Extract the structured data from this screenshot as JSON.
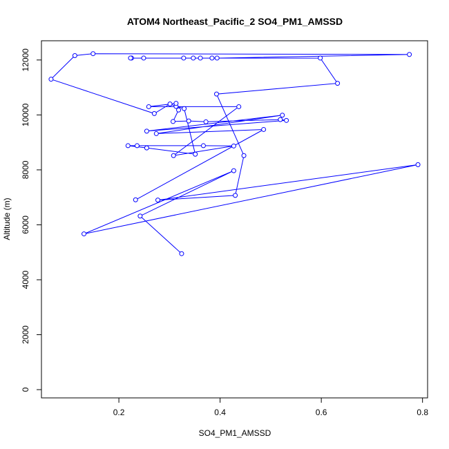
{
  "chart_data": {
    "type": "line",
    "title": "ATOM4 Northeast_Pacific_2 SO4_PM1_AMSSD",
    "xlabel": "SO4_PM1_AMSSD",
    "ylabel": "Altitude (m)",
    "xlim": [
      0.047,
      0.81
    ],
    "ylim": [
      -300,
      12700
    ],
    "xticks": [
      0.2,
      0.4,
      0.6,
      0.8
    ],
    "xtick_labels": [
      "0.2",
      "0.4",
      "0.6",
      "0.8"
    ],
    "yticks": [
      0,
      2000,
      4000,
      6000,
      8000,
      10000,
      12000
    ],
    "ytick_labels": [
      "0",
      "2000",
      "4000",
      "6000",
      "8000",
      "10000",
      "12000"
    ],
    "grid": false,
    "series": [
      {
        "color": "#0000ff",
        "marker": "open-circle",
        "x": [
          0.324,
          0.242,
          0.427,
          0.131,
          0.791,
          0.277,
          0.43,
          0.447,
          0.393,
          0.632,
          0.598,
          0.225,
          0.223,
          0.249,
          0.328,
          0.347,
          0.361,
          0.384,
          0.394,
          0.774,
          0.149,
          0.113,
          0.066,
          0.27,
          0.301,
          0.313,
          0.329,
          0.351,
          0.255,
          0.218,
          0.236,
          0.367,
          0.427,
          0.308,
          0.437,
          0.259,
          0.313,
          0.318,
          0.307,
          0.338,
          0.372,
          0.519,
          0.531,
          0.255,
          0.523,
          0.274,
          0.486,
          0.233
        ],
        "y": [
          4950,
          6320,
          7970,
          5670,
          8190,
          6900,
          7070,
          8520,
          10760,
          11150,
          12070,
          12070,
          12070,
          12070,
          12070,
          12070,
          12070,
          12070,
          12070,
          12200,
          12230,
          12160,
          11300,
          10050,
          10400,
          10310,
          10230,
          8570,
          8800,
          8880,
          8880,
          8880,
          8870,
          8520,
          10300,
          10300,
          10420,
          10180,
          9760,
          9780,
          9750,
          9830,
          9800,
          9410,
          9990,
          9320,
          9470,
          6910
        ]
      }
    ]
  }
}
